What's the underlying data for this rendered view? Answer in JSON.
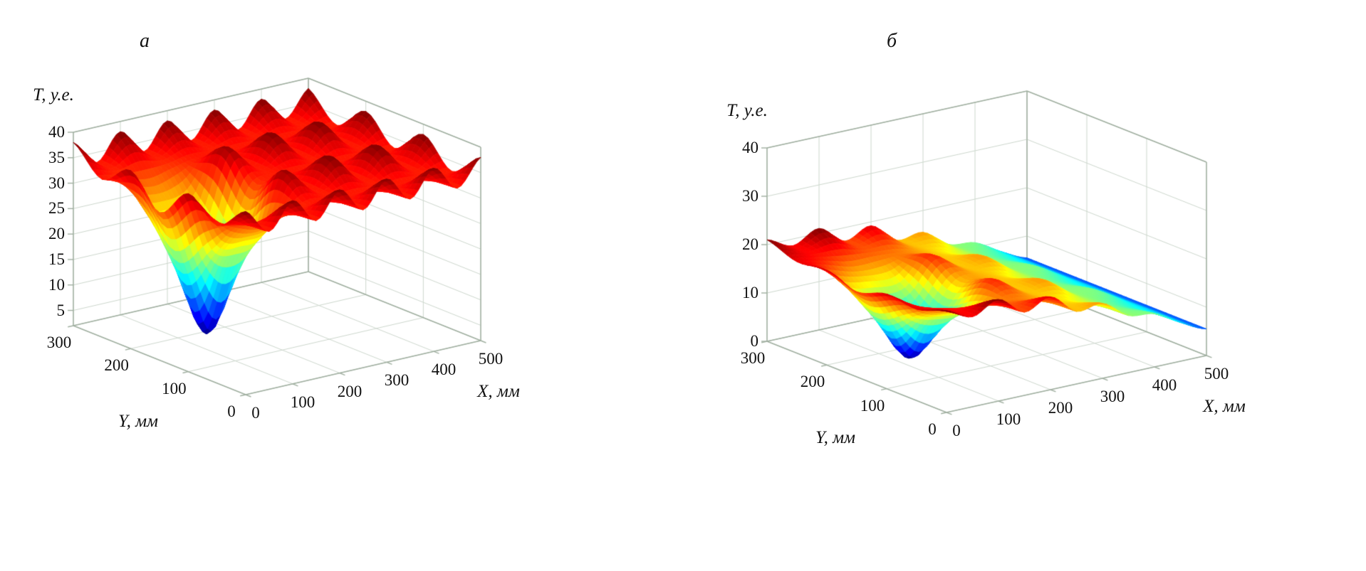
{
  "page": {
    "background": "#ffffff"
  },
  "styles": {
    "axis_color": "#9fae9f",
    "grid_color": "#ccd6cc",
    "label_color": "#111111"
  },
  "chart_data": [
    {
      "panel_label": "а",
      "type": "heatmap",
      "projection": "3d-surface",
      "zlabel": "T, у.е.",
      "xlabel": "X, мм",
      "ylabel": "Y, мм",
      "x": [
        0,
        50,
        100,
        150,
        200,
        250,
        300,
        350,
        400,
        450,
        500
      ],
      "y": [
        0,
        50,
        100,
        150,
        200,
        250,
        300
      ],
      "z_grid": [
        [
          38,
          33,
          38,
          33,
          38,
          33,
          38,
          33,
          38,
          33,
          38
        ],
        [
          33,
          32,
          31,
          32,
          33,
          33,
          33,
          33,
          33,
          33,
          33
        ],
        [
          37,
          25,
          23,
          25,
          37,
          33,
          38,
          33,
          38,
          33,
          38
        ],
        [
          31,
          18,
          5,
          18,
          31,
          33,
          33,
          33,
          33,
          33,
          33
        ],
        [
          37,
          25,
          23,
          25,
          37,
          33,
          38,
          33,
          38,
          33,
          38
        ],
        [
          33,
          32,
          31,
          32,
          33,
          33,
          33,
          33,
          33,
          33,
          33
        ],
        [
          38,
          33,
          38,
          33,
          38,
          33,
          38,
          33,
          38,
          33,
          38
        ]
      ],
      "xlim": [
        0,
        500
      ],
      "ylim": [
        0,
        300
      ],
      "zlim": [
        2,
        40
      ],
      "xticks": [
        0,
        100,
        200,
        300,
        400,
        500
      ],
      "yticks": [
        0,
        100,
        200,
        300
      ],
      "zticks": [
        5,
        10,
        15,
        20,
        25,
        30,
        35,
        40
      ],
      "colormap": "jet",
      "color_range": [
        5,
        38
      ]
    },
    {
      "panel_label": "б",
      "type": "heatmap",
      "projection": "3d-surface",
      "zlabel": "T, у.е.",
      "xlabel": "X, мм",
      "ylabel": "Y, мм",
      "x": [
        0,
        50,
        100,
        150,
        200,
        250,
        300,
        350,
        400,
        450,
        500
      ],
      "y": [
        0,
        50,
        100,
        150,
        200,
        250,
        300
      ],
      "z_grid": [
        [
          21,
          18.6,
          21,
          17.2,
          19.2,
          15,
          15.5,
          11.8,
          11,
          8,
          5.5
        ],
        [
          18.9,
          17.9,
          16.6,
          16.5,
          16.1,
          15,
          13.5,
          11.8,
          10,
          8,
          5.5
        ],
        [
          19.6,
          13.8,
          12.1,
          12.4,
          17.8,
          14.8,
          15.5,
          11.8,
          11,
          8,
          5.5
        ],
        [
          17.6,
          9.7,
          1.5,
          8.3,
          14.8,
          15,
          13.5,
          11.8,
          10,
          8,
          5.5
        ],
        [
          19.6,
          13.8,
          12.1,
          12.4,
          17.8,
          14.8,
          15.5,
          11.8,
          11,
          8,
          5.5
        ],
        [
          18.9,
          17.9,
          16.6,
          16.5,
          16.1,
          15,
          13.5,
          11.8,
          10,
          8,
          5.5
        ],
        [
          21,
          18.6,
          21,
          17.2,
          19.2,
          15,
          15.5,
          11.8,
          11,
          8,
          5.5
        ]
      ],
      "xlim": [
        0,
        500
      ],
      "ylim": [
        0,
        300
      ],
      "zlim": [
        0,
        40
      ],
      "xticks": [
        0,
        100,
        200,
        300,
        400,
        500
      ],
      "yticks": [
        0,
        100,
        200,
        300
      ],
      "zticks": [
        0,
        10,
        20,
        30,
        40
      ],
      "colormap": "jet",
      "color_range": [
        1.5,
        21
      ]
    }
  ]
}
